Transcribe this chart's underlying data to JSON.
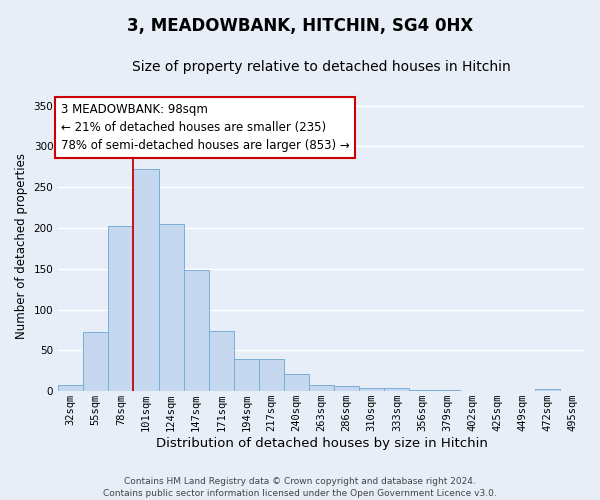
{
  "title": "3, MEADOWBANK, HITCHIN, SG4 0HX",
  "subtitle": "Size of property relative to detached houses in Hitchin",
  "xlabel": "Distribution of detached houses by size in Hitchin",
  "ylabel": "Number of detached properties",
  "categories": [
    "32sqm",
    "55sqm",
    "78sqm",
    "101sqm",
    "124sqm",
    "147sqm",
    "171sqm",
    "194sqm",
    "217sqm",
    "240sqm",
    "263sqm",
    "286sqm",
    "310sqm",
    "333sqm",
    "356sqm",
    "379sqm",
    "402sqm",
    "425sqm",
    "449sqm",
    "472sqm",
    "495sqm"
  ],
  "values": [
    7,
    72,
    202,
    272,
    205,
    148,
    74,
    40,
    40,
    21,
    7,
    6,
    4,
    4,
    2,
    1,
    0,
    0,
    0,
    3,
    0
  ],
  "bar_color": "#c5d8f0",
  "bar_edge_color": "#7aaed6",
  "background_color": "#e8eef8",
  "grid_color": "#ffffff",
  "annotation_box_text": "3 MEADOWBANK: 98sqm\n← 21% of detached houses are smaller (235)\n78% of semi-detached houses are larger (853) →",
  "annotation_box_edge_color": "#cc0000",
  "vline_color": "#cc0000",
  "vline_index": 2.5,
  "ylim": [
    0,
    355
  ],
  "yticks": [
    0,
    50,
    100,
    150,
    200,
    250,
    300,
    350
  ],
  "footer_text": "Contains HM Land Registry data © Crown copyright and database right 2024.\nContains public sector information licensed under the Open Government Licence v3.0.",
  "title_fontsize": 12,
  "subtitle_fontsize": 10,
  "xlabel_fontsize": 9.5,
  "ylabel_fontsize": 8.5,
  "tick_fontsize": 7.5,
  "annotation_fontsize": 8.5,
  "footer_fontsize": 6.5
}
